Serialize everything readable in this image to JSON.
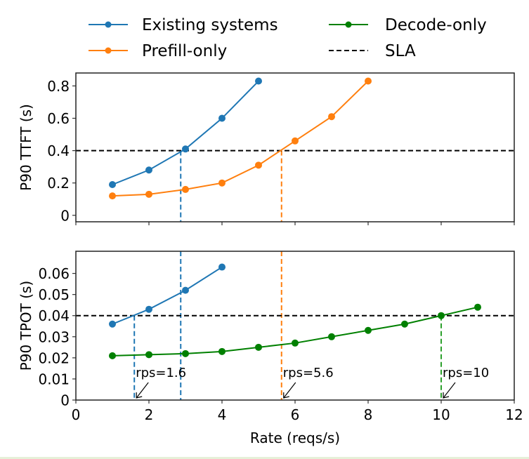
{
  "chart_data": {
    "type": "line",
    "legend": {
      "placement": "top-center",
      "entries": [
        {
          "name": "Existing systems",
          "style": "line-marker",
          "color": "#1f77b4"
        },
        {
          "name": "Prefill-only",
          "style": "line-marker",
          "color": "#ff7f0e"
        },
        {
          "name": "Decode-only",
          "style": "line-marker",
          "color": "#008000"
        },
        {
          "name": "SLA",
          "style": "dashed",
          "color": "#000000"
        }
      ]
    },
    "xlabel": "Rate (reqs/s)",
    "xlim": [
      0,
      12
    ],
    "xticks": [
      0,
      2,
      4,
      6,
      8,
      10,
      12
    ],
    "xtick_labels": [
      "0",
      "2",
      "4",
      "6",
      "8",
      "10",
      "12"
    ],
    "panels": [
      {
        "name": "ttft",
        "ylabel": "P90 TTFT (s)",
        "ylim": [
          -0.04,
          0.88
        ],
        "yticks": [
          0,
          0.2,
          0.4,
          0.6,
          0.8
        ],
        "ytick_labels": [
          "0",
          "0.2",
          "0.4",
          "0.6",
          "0.8"
        ],
        "sla": 0.4,
        "series": [
          {
            "name": "Existing systems",
            "color": "#1f77b4",
            "x": [
              1,
              2,
              3,
              4,
              5
            ],
            "y": [
              0.19,
              0.28,
              0.41,
              0.6,
              0.83
            ]
          },
          {
            "name": "Prefill-only",
            "color": "#ff7f0e",
            "x": [
              1,
              2,
              3,
              4,
              5,
              6,
              7,
              8
            ],
            "y": [
              0.12,
              0.13,
              0.16,
              0.2,
              0.31,
              0.46,
              0.61,
              0.83
            ]
          }
        ],
        "crossings": [
          {
            "x": 2.87,
            "color": "#1f77b4"
          },
          {
            "x": 5.63,
            "color": "#ff7f0e"
          }
        ]
      },
      {
        "name": "tpot",
        "ylabel": "P90 TPOT (s)",
        "ylim": [
          0,
          0.0705
        ],
        "yticks": [
          0,
          0.01,
          0.02,
          0.03,
          0.04,
          0.05,
          0.06
        ],
        "ytick_labels": [
          "0",
          "0.01",
          "0.02",
          "0.03",
          "0.04",
          "0.05",
          "0.06"
        ],
        "sla": 0.04,
        "series": [
          {
            "name": "Existing systems",
            "color": "#1f77b4",
            "x": [
              1,
              2,
              3,
              4
            ],
            "y": [
              0.036,
              0.043,
              0.052,
              0.063
            ]
          },
          {
            "name": "Decode-only",
            "color": "#008000",
            "x": [
              1,
              2,
              3,
              4,
              5,
              6,
              7,
              8,
              9,
              10,
              11
            ],
            "y": [
              0.021,
              0.0215,
              0.022,
              0.023,
              0.025,
              0.027,
              0.03,
              0.033,
              0.036,
              0.04,
              0.044
            ]
          }
        ],
        "crossings": [
          {
            "x": 1.6,
            "color": "#1f77b4"
          },
          {
            "x": 2.87,
            "color": "#1f77b4"
          },
          {
            "x": 5.63,
            "color": "#ff7f0e"
          },
          {
            "x": 10,
            "color": "#2ca02c"
          }
        ],
        "annotations": [
          {
            "text": "rps=1.6",
            "x": 1.6
          },
          {
            "text": "rps=5.6",
            "x": 5.63
          },
          {
            "text": "rps=10",
            "x": 10
          }
        ]
      }
    ]
  }
}
